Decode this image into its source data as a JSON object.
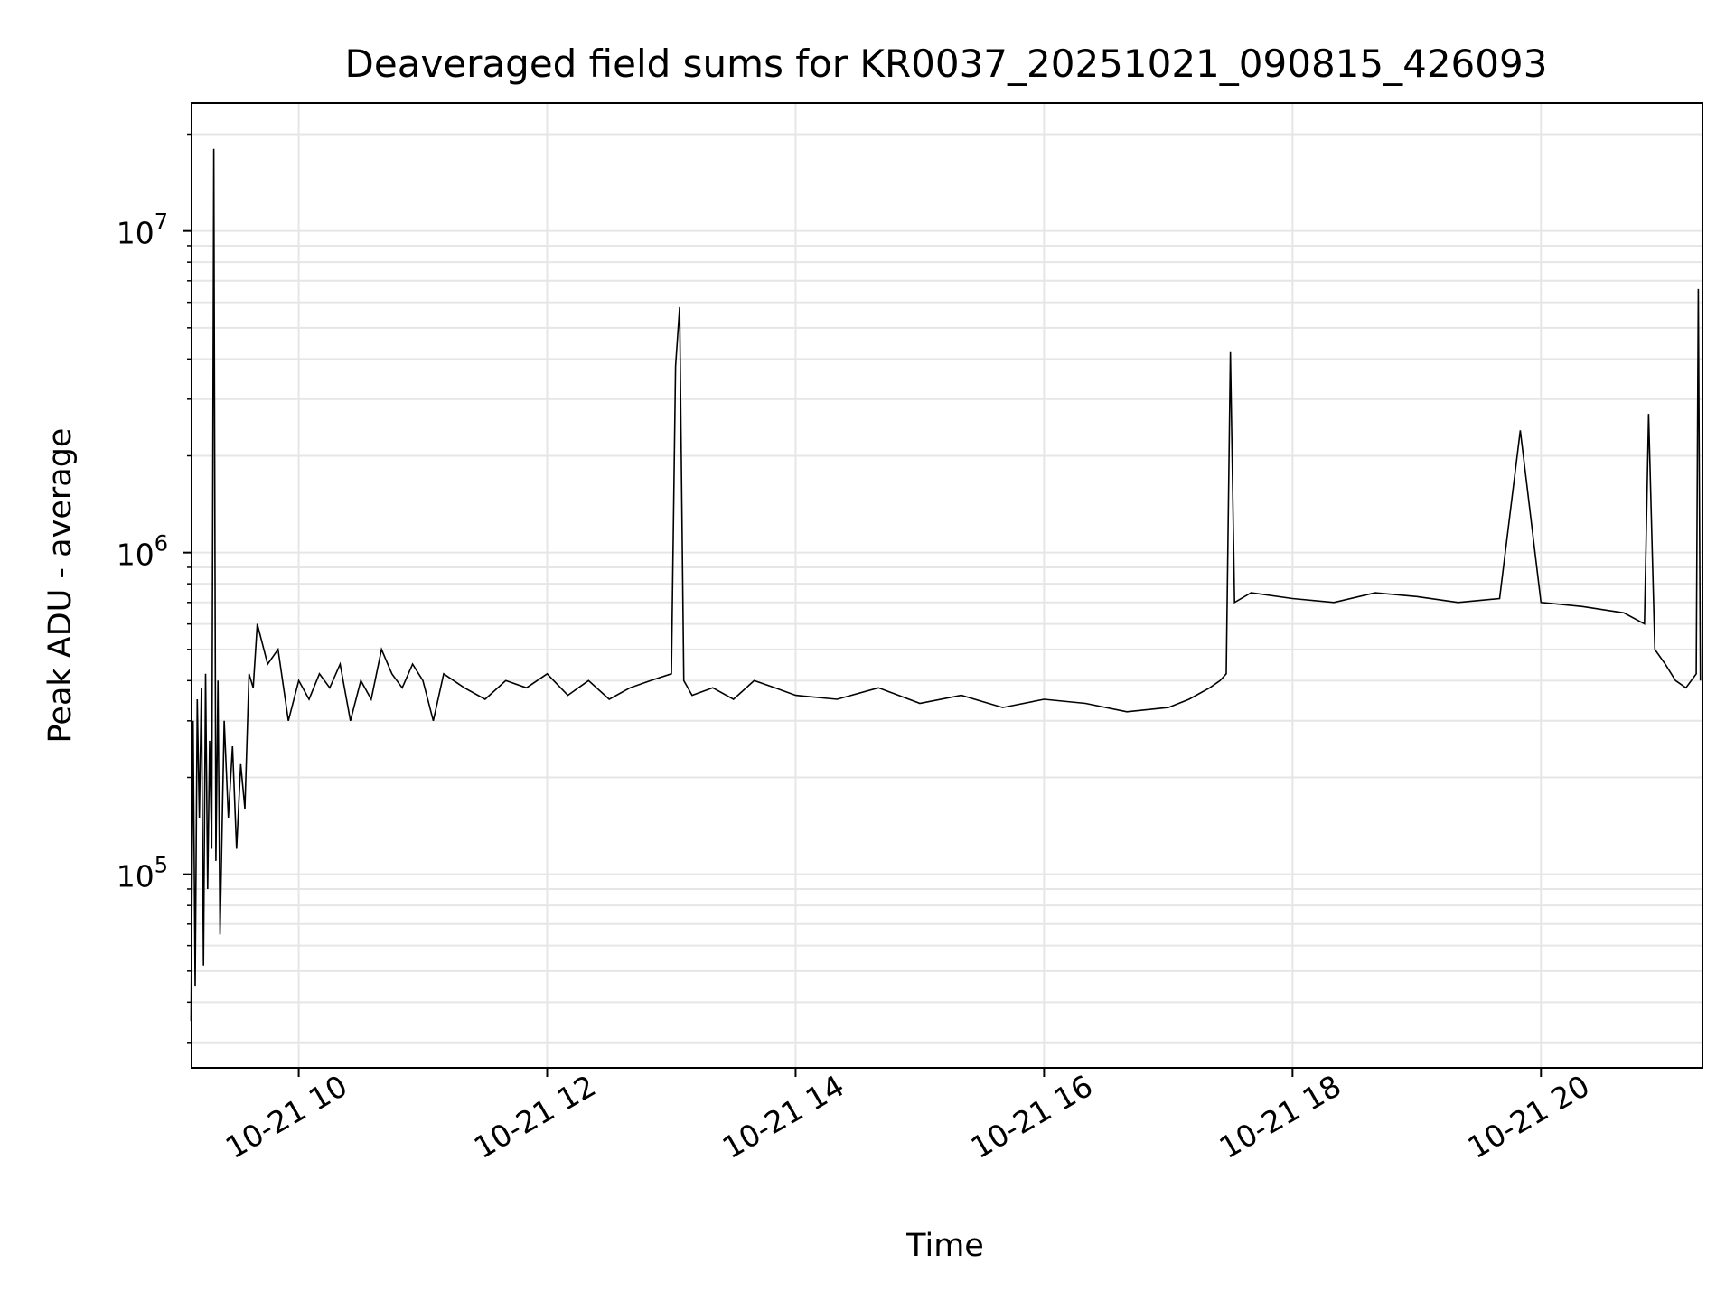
{
  "chart_data": {
    "type": "line",
    "title": "Deaveraged field sums for KR0037_20251021_090815_426093",
    "xlabel": "Time",
    "ylabel": "Peak ADU - average",
    "y_scale": "log",
    "ylim": [
      25000,
      25000000
    ],
    "xlim": [
      "2025-10-21T09:08:15",
      "2025-10-21T21:18:00"
    ],
    "grid": true,
    "line_color": "#000000",
    "grid_color": "#e6e6e6",
    "x_ticks": [
      {
        "label": "10-21 10",
        "value": "2025-10-21T10:00:00"
      },
      {
        "label": "10-21 12",
        "value": "2025-10-21T12:00:00"
      },
      {
        "label": "10-21 14",
        "value": "2025-10-21T14:00:00"
      },
      {
        "label": "10-21 16",
        "value": "2025-10-21T16:00:00"
      },
      {
        "label": "10-21 18",
        "value": "2025-10-21T18:00:00"
      },
      {
        "label": "10-21 20",
        "value": "2025-10-21T20:00:00"
      }
    ],
    "y_ticks": [
      {
        "base": "10",
        "exp": "5",
        "value": 100000
      },
      {
        "base": "10",
        "exp": "6",
        "value": 1000000
      },
      {
        "base": "10",
        "exp": "7",
        "value": 10000000
      }
    ],
    "series": [
      {
        "x": [
          "2025-10-21T09:08",
          "2025-10-21T09:09",
          "2025-10-21T09:10",
          "2025-10-21T09:11",
          "2025-10-21T09:12",
          "2025-10-21T09:13",
          "2025-10-21T09:14",
          "2025-10-21T09:15",
          "2025-10-21T09:16",
          "2025-10-21T09:17",
          "2025-10-21T09:18",
          "2025-10-21T09:19",
          "2025-10-21T09:20",
          "2025-10-21T09:21",
          "2025-10-21T09:22",
          "2025-10-21T09:24",
          "2025-10-21T09:26",
          "2025-10-21T09:28",
          "2025-10-21T09:30",
          "2025-10-21T09:32",
          "2025-10-21T09:34",
          "2025-10-21T09:36",
          "2025-10-21T09:38",
          "2025-10-21T09:40",
          "2025-10-21T09:45",
          "2025-10-21T09:50",
          "2025-10-21T09:55",
          "2025-10-21T10:00",
          "2025-10-21T10:05",
          "2025-10-21T10:10",
          "2025-10-21T10:15",
          "2025-10-21T10:20",
          "2025-10-21T10:25",
          "2025-10-21T10:30",
          "2025-10-21T10:35",
          "2025-10-21T10:40",
          "2025-10-21T10:45",
          "2025-10-21T10:50",
          "2025-10-21T10:55",
          "2025-10-21T11:00",
          "2025-10-21T11:05",
          "2025-10-21T11:10",
          "2025-10-21T11:20",
          "2025-10-21T11:30",
          "2025-10-21T11:40",
          "2025-10-21T11:50",
          "2025-10-21T12:00",
          "2025-10-21T12:10",
          "2025-10-21T12:20",
          "2025-10-21T12:30",
          "2025-10-21T12:40",
          "2025-10-21T12:50",
          "2025-10-21T13:00",
          "2025-10-21T13:02",
          "2025-10-21T13:04",
          "2025-10-21T13:06",
          "2025-10-21T13:10",
          "2025-10-21T13:20",
          "2025-10-21T13:30",
          "2025-10-21T13:40",
          "2025-10-21T13:50",
          "2025-10-21T14:00",
          "2025-10-21T14:20",
          "2025-10-21T14:40",
          "2025-10-21T15:00",
          "2025-10-21T15:20",
          "2025-10-21T15:40",
          "2025-10-21T16:00",
          "2025-10-21T16:20",
          "2025-10-21T16:40",
          "2025-10-21T17:00",
          "2025-10-21T17:10",
          "2025-10-21T17:20",
          "2025-10-21T17:25",
          "2025-10-21T17:28",
          "2025-10-21T17:30",
          "2025-10-21T17:32",
          "2025-10-21T17:40",
          "2025-10-21T18:00",
          "2025-10-21T18:20",
          "2025-10-21T18:40",
          "2025-10-21T19:00",
          "2025-10-21T19:20",
          "2025-10-21T19:40",
          "2025-10-21T19:50",
          "2025-10-21T20:00",
          "2025-10-21T20:20",
          "2025-10-21T20:40",
          "2025-10-21T20:50",
          "2025-10-21T20:52",
          "2025-10-21T20:55",
          "2025-10-21T21:00",
          "2025-10-21T21:05",
          "2025-10-21T21:10",
          "2025-10-21T21:15",
          "2025-10-21T21:16",
          "2025-10-21T21:17"
        ],
        "values": [
          35000,
          300000,
          45000,
          350000,
          150000,
          380000,
          52000,
          420000,
          90000,
          260000,
          120000,
          18000000,
          110000,
          400000,
          65000,
          300000,
          150000,
          250000,
          120000,
          220000,
          160000,
          420000,
          380000,
          600000,
          450000,
          500000,
          300000,
          400000,
          350000,
          420000,
          380000,
          450000,
          300000,
          400000,
          350000,
          500000,
          420000,
          380000,
          450000,
          400000,
          300000,
          420000,
          380000,
          350000,
          400000,
          380000,
          420000,
          360000,
          400000,
          350000,
          380000,
          400000,
          420000,
          3800000,
          5800000,
          400000,
          360000,
          380000,
          350000,
          400000,
          380000,
          360000,
          350000,
          380000,
          340000,
          360000,
          330000,
          350000,
          340000,
          320000,
          330000,
          350000,
          380000,
          400000,
          420000,
          4200000,
          700000,
          750000,
          720000,
          700000,
          750000,
          730000,
          700000,
          720000,
          2400000,
          700000,
          680000,
          650000,
          600000,
          2700000,
          500000,
          450000,
          400000,
          380000,
          420000,
          6600000,
          400000
        ]
      }
    ]
  }
}
